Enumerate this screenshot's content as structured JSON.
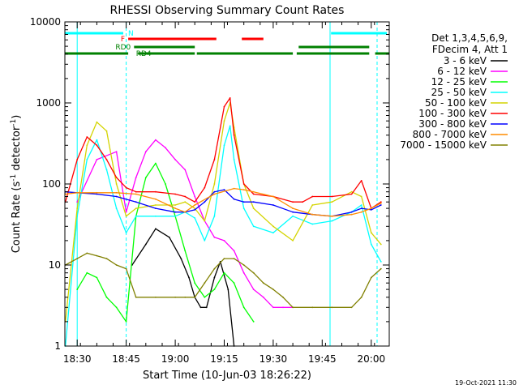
{
  "chart_data": {
    "type": "line",
    "title": "RHESSI Observing Summary Count Rates",
    "xlabel": "Start Time (10-Jun-03 18:26:22)",
    "ylabel": "Count Rate (s⁻¹ detector⁻¹)",
    "ylabel_main": "Count Rate (s",
    "ylabel_sup1": "-1",
    "ylabel_mid": " detector",
    "ylabel_sup2": "-1",
    "ylabel_end": ")",
    "yscale": "log",
    "ylim": [
      1,
      10000
    ],
    "xlim": [
      18.437,
      20.092
    ],
    "x_ticks": [
      {
        "value": 18.5,
        "label": "18:30"
      },
      {
        "value": 18.75,
        "label": "18:45"
      },
      {
        "value": 19.0,
        "label": "19:00"
      },
      {
        "value": 19.25,
        "label": "19:15"
      },
      {
        "value": 19.5,
        "label": "19:30"
      },
      {
        "value": 19.75,
        "label": "19:45"
      },
      {
        "value": 20.0,
        "label": "20:00"
      }
    ],
    "y_ticks": [
      {
        "value": 1,
        "label": "1"
      },
      {
        "value": 10,
        "label": "10"
      },
      {
        "value": 100,
        "label": "100"
      },
      {
        "value": 1000,
        "label": "1000"
      },
      {
        "value": 10000,
        "label": "10000"
      }
    ],
    "legend_header": [
      "Det 1,3,4,5,6,9,",
      "FDecim 4, Att 1"
    ],
    "legend_position": "right",
    "timestamp": "19-Oct-2021 11:30",
    "vertical_markers": [
      {
        "x": 18.5,
        "style": "solid",
        "color": "#00ffff"
      },
      {
        "x": 18.75,
        "style": "dashed",
        "color": "#00ffff"
      },
      {
        "x": 19.79,
        "style": "solid",
        "color": "#00ffff"
      },
      {
        "x": 20.03,
        "style": "dashed",
        "color": "#00ffff"
      }
    ],
    "flag_bars": [
      {
        "label": "N",
        "color": "#00ffff",
        "y": 4,
        "segments": [
          [
            18.437,
            18.735
          ],
          [
            19.795,
            20.08
          ]
        ]
      },
      {
        "label": "F",
        "color": "#ff0000",
        "y": 3,
        "segments": [
          [
            18.76,
            19.21
          ],
          [
            19.34,
            19.45
          ]
        ]
      },
      {
        "label": "RD0",
        "color": "#008000",
        "y": 2,
        "segments": [
          [
            18.79,
            19.1
          ],
          [
            19.63,
            19.99
          ]
        ]
      },
      {
        "label": "RD4",
        "color": "#008000",
        "y": 1,
        "segments": [
          [
            18.437,
            18.76
          ],
          [
            18.81,
            19.1
          ],
          [
            19.11,
            19.6
          ],
          [
            19.62,
            19.99
          ],
          [
            20.02,
            20.09
          ]
        ]
      }
    ],
    "series": [
      {
        "name": "3 - 6 keV",
        "color": "#000000",
        "x": [
          18.78,
          18.85,
          18.9,
          18.97,
          19.03,
          19.07,
          19.1,
          19.13,
          19.16,
          19.2,
          19.23,
          19.27,
          19.3
        ],
        "values": [
          10,
          18,
          28,
          22,
          12,
          7,
          4,
          3,
          3,
          7,
          11,
          5,
          1
        ]
      },
      {
        "name": "6 - 12 keV",
        "color": "#ff00ff",
        "x": [
          18.5,
          18.6,
          18.7,
          18.75,
          18.8,
          18.85,
          18.9,
          18.95,
          19.0,
          19.05,
          19.1,
          19.15,
          19.2,
          19.25,
          19.3,
          19.35,
          19.4,
          19.45,
          19.5,
          19.55,
          19.6
        ],
        "values": [
          60,
          200,
          250,
          45,
          120,
          250,
          350,
          280,
          200,
          150,
          70,
          35,
          22,
          20,
          15,
          8,
          5,
          4,
          3,
          3,
          3
        ]
      },
      {
        "name": "12 - 25 keV",
        "color": "#00ff00",
        "x": [
          18.5,
          18.55,
          18.6,
          18.65,
          18.7,
          18.75,
          18.8,
          18.85,
          18.9,
          18.95,
          19.0,
          19.05,
          19.1,
          19.15,
          19.2,
          19.25,
          19.3,
          19.35,
          19.4
        ],
        "values": [
          5,
          8,
          7,
          4,
          3,
          2,
          40,
          120,
          180,
          100,
          40,
          15,
          6,
          4,
          5,
          8,
          6,
          3,
          2
        ]
      },
      {
        "name": "25 - 50 keV",
        "color": "#00ffff",
        "x": [
          18.44,
          18.5,
          18.55,
          18.6,
          18.65,
          18.7,
          18.75,
          18.8,
          18.9,
          19.0,
          19.05,
          19.1,
          19.15,
          19.2,
          19.25,
          19.28,
          19.3,
          19.35,
          19.4,
          19.5,
          19.6,
          19.7,
          19.8,
          19.9,
          19.95,
          20.0,
          20.05
        ],
        "values": [
          1,
          40,
          200,
          350,
          150,
          50,
          25,
          40,
          40,
          40,
          45,
          38,
          20,
          40,
          300,
          520,
          200,
          50,
          30,
          25,
          40,
          32,
          35,
          45,
          55,
          18,
          11
        ]
      },
      {
        "name": "50 - 100 keV",
        "color": "#d4d400",
        "x": [
          18.44,
          18.5,
          18.55,
          18.6,
          18.65,
          18.7,
          18.75,
          18.8,
          18.9,
          19.0,
          19.05,
          19.1,
          19.15,
          19.2,
          19.25,
          19.28,
          19.3,
          19.35,
          19.4,
          19.5,
          19.6,
          19.7,
          19.8,
          19.9,
          19.95,
          20.0,
          20.05
        ],
        "values": [
          2,
          50,
          300,
          580,
          450,
          100,
          40,
          50,
          55,
          55,
          60,
          50,
          35,
          100,
          600,
          1000,
          500,
          100,
          50,
          30,
          20,
          55,
          60,
          80,
          70,
          25,
          18
        ]
      },
      {
        "name": "100 - 300 keV",
        "color": "#ff0000",
        "x": [
          18.44,
          18.5,
          18.55,
          18.6,
          18.65,
          18.7,
          18.75,
          18.8,
          18.9,
          19.0,
          19.05,
          19.1,
          19.15,
          19.2,
          19.25,
          19.28,
          19.3,
          19.35,
          19.4,
          19.5,
          19.6,
          19.65,
          19.7,
          19.8,
          19.9,
          19.95,
          20.0,
          20.05
        ],
        "values": [
          60,
          200,
          380,
          300,
          200,
          120,
          90,
          80,
          80,
          75,
          70,
          60,
          90,
          200,
          900,
          1150,
          400,
          100,
          75,
          70,
          60,
          60,
          70,
          70,
          75,
          110,
          50,
          60
        ]
      },
      {
        "name": "300 - 800 keV",
        "color": "#0000ff",
        "x": [
          18.44,
          18.5,
          18.6,
          18.7,
          18.8,
          18.9,
          19.0,
          19.05,
          19.1,
          19.15,
          19.2,
          19.25,
          19.3,
          19.35,
          19.4,
          19.5,
          19.6,
          19.7,
          19.8,
          19.9,
          19.95,
          20.0,
          20.05
        ],
        "values": [
          80,
          78,
          75,
          70,
          60,
          50,
          45,
          45,
          48,
          60,
          80,
          85,
          65,
          60,
          60,
          55,
          45,
          42,
          40,
          45,
          50,
          48,
          55
        ]
      },
      {
        "name": "800 - 7000 keV",
        "color": "#ff8c00",
        "x": [
          18.44,
          18.5,
          18.6,
          18.7,
          18.8,
          18.9,
          19.0,
          19.05,
          19.1,
          19.2,
          19.3,
          19.35,
          19.4,
          19.5,
          19.6,
          19.7,
          19.8,
          19.9,
          19.95,
          20.0,
          20.05
        ],
        "values": [
          75,
          78,
          78,
          78,
          75,
          65,
          50,
          45,
          55,
          75,
          88,
          85,
          80,
          70,
          50,
          42,
          40,
          42,
          45,
          50,
          58
        ]
      },
      {
        "name": "7000 - 15000 keV",
        "color": "#808000",
        "x": [
          18.44,
          18.5,
          18.55,
          18.6,
          18.65,
          18.7,
          18.75,
          18.8,
          18.9,
          19.0,
          19.05,
          19.1,
          19.15,
          19.2,
          19.25,
          19.3,
          19.35,
          19.4,
          19.45,
          19.5,
          19.55,
          19.6,
          19.7,
          19.8,
          19.9,
          19.95,
          20.0,
          20.05
        ],
        "values": [
          10,
          12,
          14,
          13,
          12,
          10,
          9,
          4,
          4,
          4,
          4,
          4,
          6,
          9,
          12,
          12,
          10,
          8,
          6,
          5,
          4,
          3,
          3,
          3,
          3,
          4,
          7,
          9
        ]
      }
    ]
  }
}
